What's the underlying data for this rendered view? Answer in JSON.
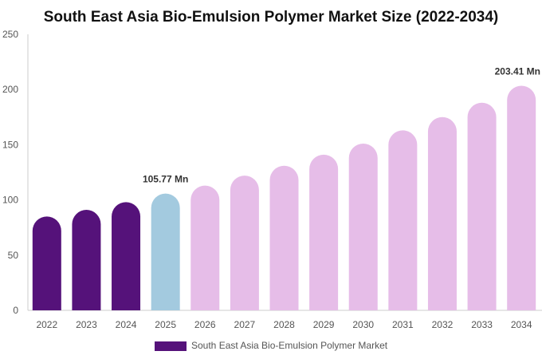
{
  "chart_data": {
    "type": "bar",
    "title": "South East Asia Bio-Emulsion Polymer Market Size (2022-2034)",
    "categories": [
      "2022",
      "2023",
      "2024",
      "2025",
      "2026",
      "2027",
      "2028",
      "2029",
      "2030",
      "2031",
      "2032",
      "2033",
      "2034"
    ],
    "series": [
      {
        "name": "South East Asia Bio-Emulsion Polymer Market",
        "values": [
          85,
          91,
          98,
          105.77,
          113,
          122,
          131,
          141,
          151,
          163,
          175,
          188,
          203.41
        ]
      }
    ],
    "data_labels": [
      {
        "index": 3,
        "text": "105.77 Mn"
      },
      {
        "index": 12,
        "text": "203.41 Mn"
      }
    ],
    "ylim": [
      0,
      250
    ],
    "yticks": [
      "0",
      "50",
      "100",
      "150",
      "200",
      "250"
    ],
    "xlabel": "",
    "ylabel": "",
    "grid": false,
    "legend_position": "bottom",
    "colors": {
      "historical": "#55127a",
      "current": "#a3cadf",
      "forecast": "#e6bde8",
      "axis": "#cccccc"
    },
    "color_groups": [
      "historical",
      "historical",
      "historical",
      "current",
      "forecast",
      "forecast",
      "forecast",
      "forecast",
      "forecast",
      "forecast",
      "forecast",
      "forecast",
      "forecast"
    ]
  }
}
